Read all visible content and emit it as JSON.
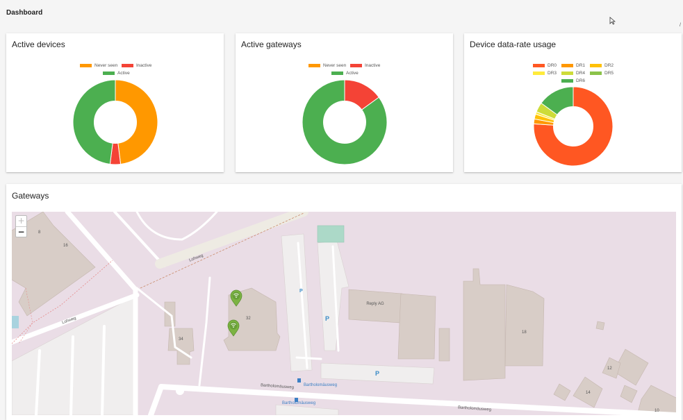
{
  "header": {
    "title": "Dashboard"
  },
  "cards": {
    "active_devices": {
      "title": "Active devices",
      "legend": [
        {
          "label": "Never seen",
          "color": "#ff9800"
        },
        {
          "label": "Inactive",
          "color": "#f44336"
        },
        {
          "label": "Active",
          "color": "#4caf50"
        }
      ]
    },
    "active_gateways": {
      "title": "Active gateways",
      "legend": [
        {
          "label": "Never seen",
          "color": "#ff9800"
        },
        {
          "label": "Inactive",
          "color": "#f44336"
        },
        {
          "label": "Active",
          "color": "#4caf50"
        }
      ]
    },
    "data_rate": {
      "title": "Device data-rate usage",
      "legend": [
        {
          "label": "DR0",
          "color": "#ff5722"
        },
        {
          "label": "DR1",
          "color": "#ff9800"
        },
        {
          "label": "DR2",
          "color": "#ffc107"
        },
        {
          "label": "DR3",
          "color": "#ffeb3b"
        },
        {
          "label": "DR4",
          "color": "#cddc39"
        },
        {
          "label": "DR5",
          "color": "#8bc34a"
        },
        {
          "label": "DR6",
          "color": "#4caf50"
        }
      ]
    }
  },
  "chart_data": [
    {
      "type": "pie",
      "title": "Active devices",
      "categories": [
        "Never seen",
        "Inactive",
        "Active"
      ],
      "values": [
        48,
        4,
        48
      ],
      "colors": [
        "#ff9800",
        "#f44336",
        "#4caf50"
      ],
      "legend_position": "top"
    },
    {
      "type": "pie",
      "title": "Active gateways",
      "categories": [
        "Never seen",
        "Inactive",
        "Active"
      ],
      "values": [
        0,
        15,
        85
      ],
      "colors": [
        "#ff9800",
        "#f44336",
        "#4caf50"
      ],
      "legend_position": "top"
    },
    {
      "type": "pie",
      "title": "Device data-rate usage",
      "categories": [
        "DR0",
        "DR1",
        "DR2",
        "DR3",
        "DR4",
        "DR5",
        "DR6"
      ],
      "values": [
        76,
        2,
        2,
        1,
        4,
        0,
        15
      ],
      "colors": [
        "#ff5722",
        "#ff9800",
        "#ffc107",
        "#ffeb3b",
        "#cddc39",
        "#8bc34a",
        "#4caf50"
      ],
      "legend_position": "top"
    }
  ],
  "gateways": {
    "title": "Gateways",
    "zoom_in": "+",
    "zoom_out": "−",
    "map": {
      "streets": [
        "Lohweg",
        "Lohweg",
        "Bartholomäusweg",
        "Bartholomäusweg",
        "Bartholomäusweg",
        "Bartholomäusweg"
      ],
      "buildings": [
        "Reply AG"
      ],
      "house_numbers": [
        "8",
        "16",
        "32",
        "34",
        "18",
        "12",
        "14",
        "10"
      ],
      "parking": [
        "P",
        "P",
        "P"
      ],
      "marker_icon": "wifi-marker-icon"
    }
  }
}
